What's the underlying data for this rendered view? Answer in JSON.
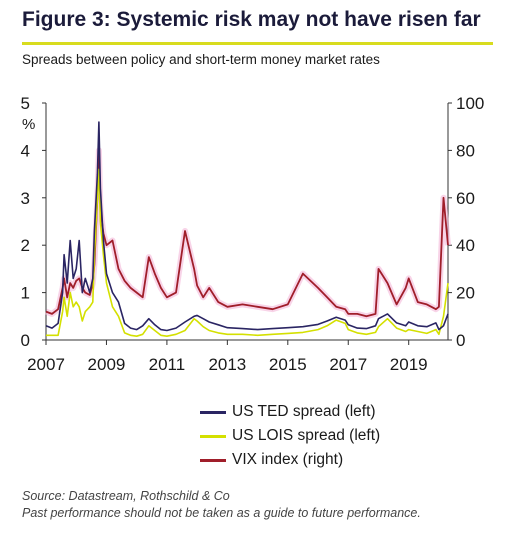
{
  "title": "Figure 3: Systemic risk may not have risen far",
  "subtitle": "Spreads between policy and short-term money market rates",
  "source_line1": "Source: Datastream, Rothschild & Co",
  "source_line2": "Past performance should not be taken as a guide to future performance.",
  "colors": {
    "rule": "#d8dc1e",
    "ted": "#2a2563",
    "lois": "#d4e000",
    "vix": "#a01e2a",
    "vix_glow": "#f3b8d8"
  },
  "chart_data": {
    "type": "line",
    "xlabel": "",
    "ylabel_left": "%",
    "ylabel_right": "",
    "x_ticks": [
      "2007",
      "2009",
      "2011",
      "2013",
      "2015",
      "2017",
      "2019"
    ],
    "xlim": [
      2007,
      2020.3
    ],
    "ylim_left": [
      0,
      5
    ],
    "ylim_right": [
      0,
      100
    ],
    "yticks_left": [
      "0",
      "1",
      "2",
      "3",
      "4",
      "5"
    ],
    "yticks_right": [
      "0",
      "20",
      "40",
      "60",
      "80",
      "100"
    ],
    "grid": false,
    "legend_position": "bottom",
    "series": [
      {
        "name": "US TED spread (left)",
        "axis": "left",
        "x": [
          2007.0,
          2007.2,
          2007.4,
          2007.55,
          2007.6,
          2007.7,
          2007.8,
          2007.9,
          2008.0,
          2008.1,
          2008.2,
          2008.3,
          2008.45,
          2008.55,
          2008.6,
          2008.7,
          2008.75,
          2008.8,
          2008.9,
          2009.0,
          2009.2,
          2009.4,
          2009.6,
          2009.8,
          2010.0,
          2010.2,
          2010.4,
          2010.6,
          2010.8,
          2011.0,
          2011.3,
          2011.6,
          2011.9,
          2012.0,
          2012.2,
          2012.4,
          2012.7,
          2013.0,
          2013.5,
          2014.0,
          2014.5,
          2015.0,
          2015.5,
          2016.0,
          2016.3,
          2016.6,
          2016.9,
          2017.0,
          2017.3,
          2017.6,
          2017.9,
          2018.0,
          2018.3,
          2018.6,
          2018.9,
          2019.0,
          2019.3,
          2019.6,
          2019.9,
          2020.0,
          2020.15,
          2020.3
        ],
        "values": [
          0.3,
          0.25,
          0.35,
          1.0,
          1.8,
          1.2,
          2.1,
          1.3,
          1.5,
          2.1,
          1.0,
          1.3,
          1.0,
          1.3,
          2.3,
          3.5,
          4.6,
          3.2,
          2.1,
          1.4,
          1.0,
          0.8,
          0.35,
          0.25,
          0.22,
          0.3,
          0.45,
          0.32,
          0.22,
          0.2,
          0.25,
          0.38,
          0.5,
          0.52,
          0.45,
          0.38,
          0.32,
          0.26,
          0.24,
          0.22,
          0.24,
          0.26,
          0.28,
          0.33,
          0.4,
          0.48,
          0.42,
          0.32,
          0.25,
          0.24,
          0.3,
          0.45,
          0.55,
          0.36,
          0.3,
          0.38,
          0.3,
          0.28,
          0.36,
          0.22,
          0.3,
          0.55
        ]
      },
      {
        "name": "US LOIS spread (left)",
        "axis": "left",
        "x": [
          2007.0,
          2007.2,
          2007.4,
          2007.55,
          2007.6,
          2007.7,
          2007.8,
          2007.9,
          2008.0,
          2008.1,
          2008.2,
          2008.3,
          2008.45,
          2008.55,
          2008.6,
          2008.7,
          2008.75,
          2008.8,
          2008.9,
          2009.0,
          2009.2,
          2009.4,
          2009.6,
          2009.8,
          2010.0,
          2010.2,
          2010.4,
          2010.6,
          2010.8,
          2011.0,
          2011.3,
          2011.6,
          2011.9,
          2012.0,
          2012.2,
          2012.4,
          2012.7,
          2013.0,
          2013.5,
          2014.0,
          2014.5,
          2015.0,
          2015.5,
          2016.0,
          2016.3,
          2016.6,
          2016.9,
          2017.0,
          2017.3,
          2017.6,
          2017.9,
          2018.0,
          2018.3,
          2018.6,
          2018.9,
          2019.0,
          2019.3,
          2019.6,
          2019.9,
          2020.0,
          2020.15,
          2020.3
        ],
        "values": [
          0.1,
          0.1,
          0.1,
          0.6,
          0.9,
          0.5,
          1.0,
          0.7,
          0.8,
          0.7,
          0.4,
          0.6,
          0.7,
          0.8,
          1.8,
          3.0,
          3.6,
          2.5,
          1.8,
          1.2,
          0.7,
          0.5,
          0.15,
          0.1,
          0.08,
          0.12,
          0.3,
          0.2,
          0.1,
          0.08,
          0.12,
          0.2,
          0.45,
          0.4,
          0.28,
          0.2,
          0.15,
          0.12,
          0.12,
          0.1,
          0.12,
          0.14,
          0.16,
          0.22,
          0.3,
          0.42,
          0.35,
          0.22,
          0.15,
          0.12,
          0.16,
          0.28,
          0.45,
          0.25,
          0.18,
          0.22,
          0.18,
          0.14,
          0.22,
          0.12,
          0.5,
          1.2
        ]
      },
      {
        "name": "VIX index (right)",
        "axis": "right",
        "x": [
          2007.0,
          2007.2,
          2007.4,
          2007.55,
          2007.6,
          2007.7,
          2007.8,
          2007.9,
          2008.0,
          2008.1,
          2008.2,
          2008.3,
          2008.45,
          2008.55,
          2008.6,
          2008.7,
          2008.75,
          2008.8,
          2008.9,
          2009.0,
          2009.2,
          2009.4,
          2009.6,
          2009.8,
          2010.0,
          2010.2,
          2010.4,
          2010.6,
          2010.8,
          2011.0,
          2011.3,
          2011.6,
          2011.9,
          2012.0,
          2012.2,
          2012.4,
          2012.7,
          2013.0,
          2013.5,
          2014.0,
          2014.5,
          2015.0,
          2015.5,
          2016.0,
          2016.3,
          2016.6,
          2016.9,
          2017.0,
          2017.3,
          2017.6,
          2017.9,
          2018.0,
          2018.3,
          2018.6,
          2018.9,
          2019.0,
          2019.3,
          2019.6,
          2019.9,
          2020.0,
          2020.15,
          2020.3
        ],
        "values": [
          12,
          11,
          13,
          22,
          26,
          18,
          24,
          22,
          25,
          26,
          22,
          20,
          19,
          24,
          32,
          60,
          80,
          55,
          45,
          40,
          42,
          30,
          25,
          22,
          20,
          18,
          35,
          28,
          22,
          18,
          20,
          46,
          30,
          23,
          18,
          22,
          16,
          14,
          15,
          14,
          13,
          15,
          28,
          22,
          18,
          14,
          13,
          11,
          11,
          10,
          11,
          30,
          24,
          15,
          22,
          26,
          16,
          15,
          13,
          14,
          60,
          40
        ]
      }
    ]
  }
}
